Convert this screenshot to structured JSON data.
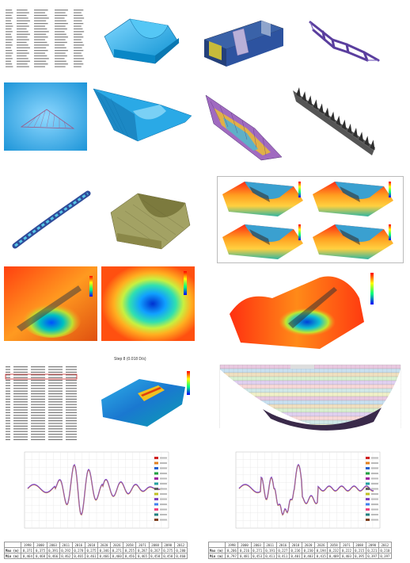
{
  "panel_result": {
    "title": "Step 8 (0.018 D/s)"
  },
  "table_left": {
    "columns": [
      "",
      "1998",
      "2000",
      "2003",
      "2011",
      "2016",
      "2018",
      "2020",
      "2026",
      "2058",
      "2071",
      "2088",
      "2090",
      "2012"
    ],
    "rows": [
      {
        "label": "Max (m)",
        "values": [
          "0,371",
          "0,375",
          "0,391",
          "0,292",
          "0,278",
          "0,275",
          "0,346",
          "0,271",
          "0,255",
          "0,287",
          "0,267",
          "0,275",
          "0,280"
        ]
      },
      {
        "label": "Min (m)",
        "values": [
          "0,464",
          "0,468",
          "0,466",
          "0,462",
          "0,465",
          "0,461",
          "0,466",
          "0,460",
          "0,456",
          "0,465",
          "0,458",
          "0,458",
          "0,460"
        ]
      }
    ]
  },
  "table_right": {
    "columns": [
      "",
      "1998",
      "2000",
      "2003",
      "2011",
      "2016",
      "2018",
      "2020",
      "2026",
      "2058",
      "2071",
      "2088",
      "2090",
      "2012"
    ],
    "rows": [
      {
        "label": "Max (m)",
        "values": [
          "0,206",
          "0,216",
          "0,271",
          "0,191",
          "0,227",
          "0,236",
          "0,230",
          "0,194",
          "0,232",
          "0,222",
          "0,215",
          "0,221",
          "0,210"
        ]
      },
      {
        "label": "Min (m)",
        "values": [
          "0,797",
          "0,481",
          "0,453",
          "0,411",
          "0,411",
          "0,401",
          "0,403",
          "0,415",
          "0,409",
          "0,403",
          "0,395",
          "0,397",
          "0,397"
        ]
      }
    ]
  }
}
